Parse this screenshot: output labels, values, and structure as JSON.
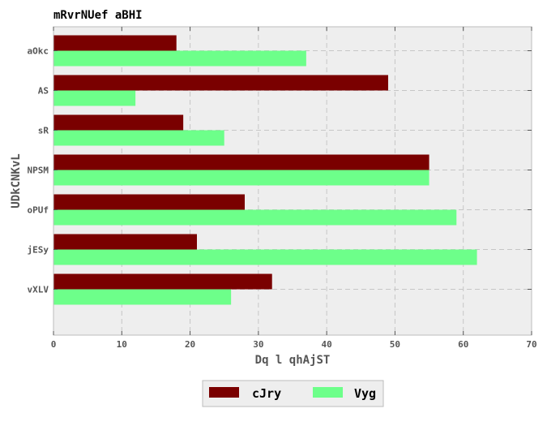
{
  "chart_data": {
    "type": "bar",
    "orientation": "horizontal",
    "title": "mRvrNUef aBHI",
    "xlabel": "Dq l qhAjST",
    "ylabel": "UDkCNKvL",
    "categories": [
      "aOkc",
      "AS",
      "sR",
      "NPSM",
      "oPUf",
      "jESy",
      "vXLV"
    ],
    "series": [
      {
        "name": "cJry",
        "color": "#7a0000",
        "values": [
          18,
          49,
          19,
          55,
          28,
          21,
          32
        ]
      },
      {
        "name": "Vyg",
        "color": "#6dff8a",
        "values": [
          37,
          12,
          25,
          55,
          59,
          62,
          26
        ]
      }
    ],
    "xlim": [
      0,
      70
    ],
    "xticks": [
      0,
      10,
      20,
      30,
      40,
      50,
      60,
      70
    ],
    "grid": true,
    "legend_position": "bottom-center",
    "background_color": "#eeeeee"
  }
}
